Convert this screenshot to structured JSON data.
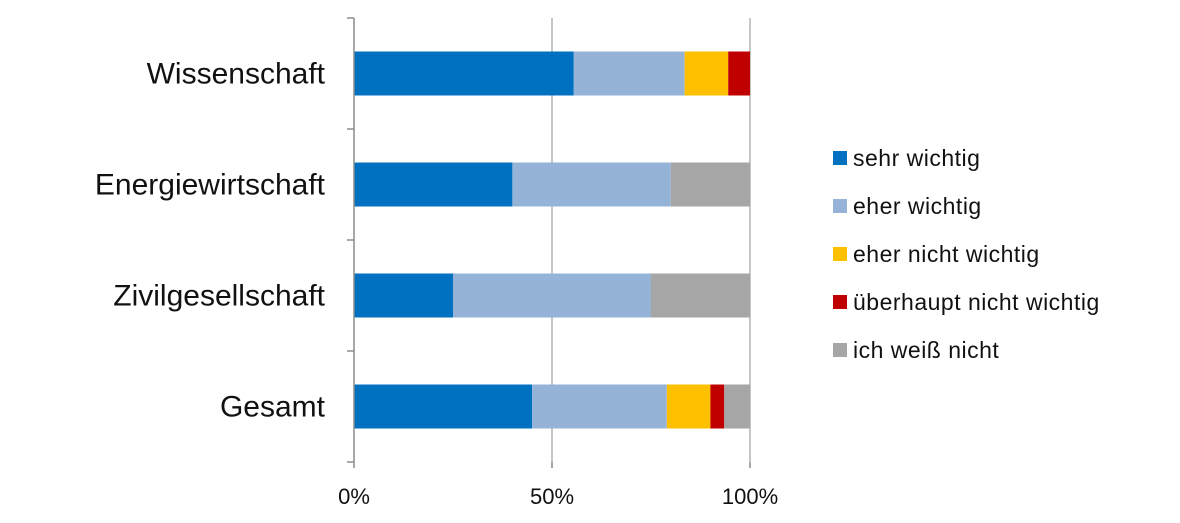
{
  "chart_data": {
    "type": "bar",
    "orientation": "horizontal",
    "stacked": "percent",
    "categories": [
      "Wissenschaft",
      "Energiewirtschaft",
      "Zivilgesellschaft",
      "Gesamt"
    ],
    "series": [
      {
        "name": "sehr wichtig",
        "color": "#0070C0",
        "values": [
          55.5,
          40,
          25,
          45
        ]
      },
      {
        "name": "eher wichtig",
        "color": "#95B3D7",
        "values": [
          28,
          40,
          50,
          34
        ]
      },
      {
        "name": "eher nicht wichtig",
        "color": "#FFC000",
        "values": [
          11,
          0,
          0,
          11
        ]
      },
      {
        "name": "überhaupt nicht wichtig",
        "color": "#C00000",
        "values": [
          5.5,
          0,
          0,
          3.5
        ]
      },
      {
        "name": "ich weiß nicht",
        "color": "#A6A6A6",
        "values": [
          0,
          20,
          25,
          6.5
        ]
      }
    ],
    "xlim": [
      0,
      100
    ],
    "xticks": [
      "0%",
      "50%",
      "100%"
    ],
    "grid": true,
    "legend_position": "right",
    "title": "",
    "xlabel": "",
    "ylabel": ""
  }
}
